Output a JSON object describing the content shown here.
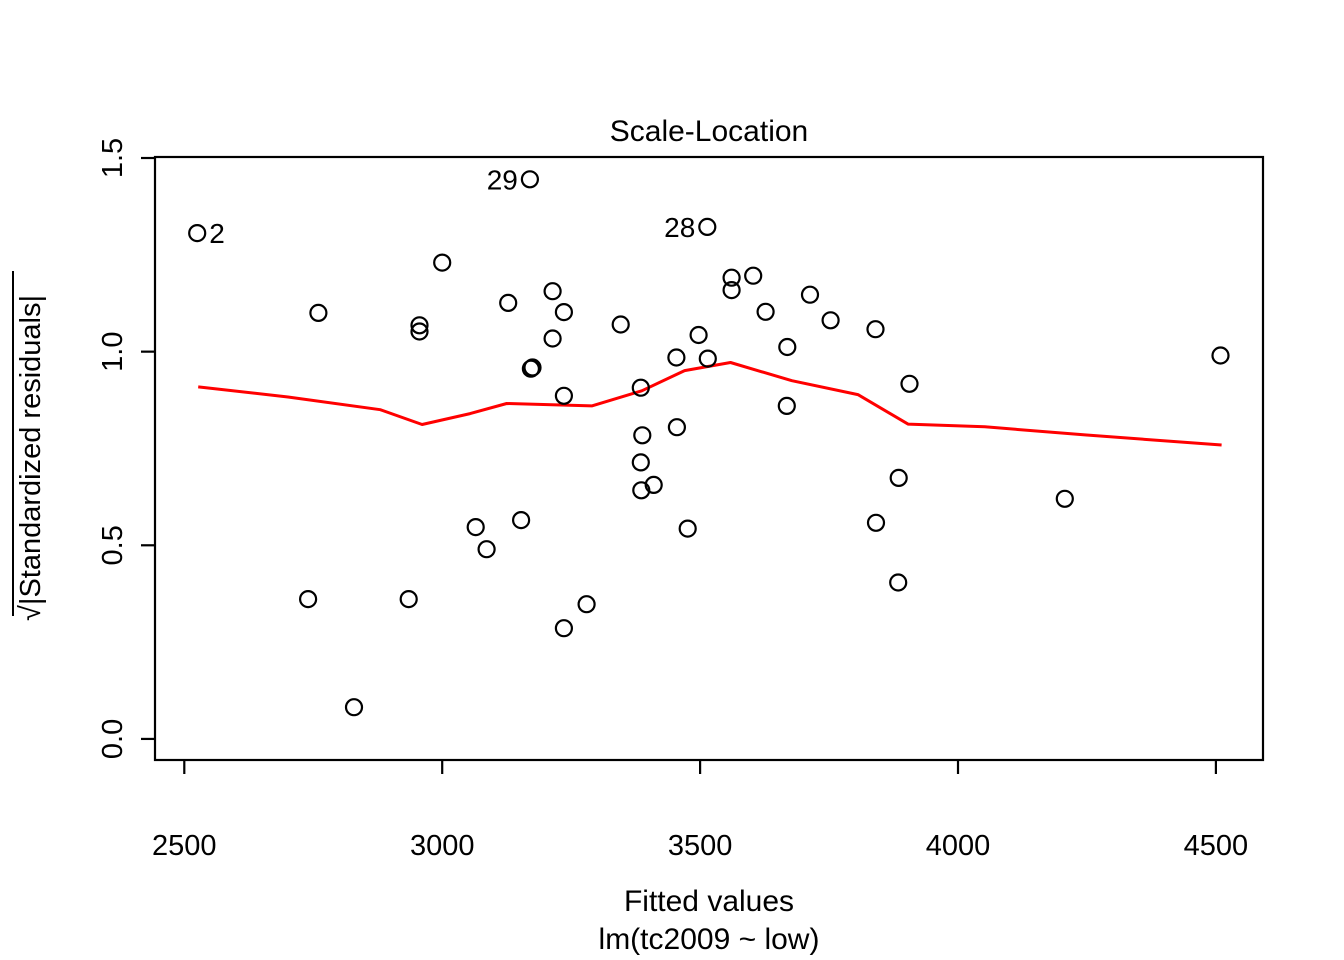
{
  "figure": {
    "title": "Scale-Location",
    "xlabel": "Fitted values",
    "sublabel": "lm(tc2009 ~ low)",
    "ylabel_radical": "√",
    "ylabel_body": "|Standardized residuals|"
  },
  "colors": {
    "background": "#ffffff",
    "foreground": "#000000",
    "smooth_line": "#ff0000"
  },
  "chart_data": {
    "type": "scatter",
    "title": "Scale-Location",
    "xlabel": "Fitted values",
    "model_label": "lm(tc2009 ~ low)",
    "ylabel": "sqrt(|Standardized residuals|)",
    "x_ticks": [
      2500,
      3000,
      3500,
      4000,
      4500
    ],
    "y_ticks": [
      "0.0",
      "0.5",
      "1.0",
      "1.5"
    ],
    "y_tick_values": [
      0.0,
      0.5,
      1.0,
      1.5
    ],
    "x_usr": [
      2443.2,
      4591.3
    ],
    "y_usr": [
      -0.0544,
      1.5026
    ],
    "grid": false,
    "legend": false,
    "points": [
      [
        2525,
        1.306
      ],
      [
        3170,
        1.445
      ],
      [
        3514,
        1.322
      ],
      [
        3000,
        1.23
      ],
      [
        2760,
        1.1
      ],
      [
        2956,
        1.068
      ],
      [
        2956,
        1.052
      ],
      [
        3128,
        1.126
      ],
      [
        3172,
        0.956
      ],
      [
        3175,
        0.959
      ],
      [
        3214,
        1.156
      ],
      [
        3236,
        1.102
      ],
      [
        3214,
        1.034
      ],
      [
        3236,
        0.886
      ],
      [
        3346,
        1.07
      ],
      [
        3385,
        0.907
      ],
      [
        3454,
        0.985
      ],
      [
        3497,
        1.043
      ],
      [
        3515,
        0.982
      ],
      [
        3561,
        1.191
      ],
      [
        3561,
        1.159
      ],
      [
        3603,
        1.196
      ],
      [
        3627,
        1.103
      ],
      [
        3669,
        1.012
      ],
      [
        3713,
        1.147
      ],
      [
        3753,
        1.081
      ],
      [
        3840,
        1.058
      ],
      [
        3668,
        0.86
      ],
      [
        3388,
        0.784
      ],
      [
        3455,
        0.805
      ],
      [
        3385,
        0.714
      ],
      [
        3906,
        0.917
      ],
      [
        4509,
        0.99
      ],
      [
        2740,
        0.361
      ],
      [
        2935,
        0.361
      ],
      [
        3065,
        0.547
      ],
      [
        3086,
        0.49
      ],
      [
        3153,
        0.565
      ],
      [
        2829,
        0.082
      ],
      [
        3386,
        0.642
      ],
      [
        3410,
        0.656
      ],
      [
        3476,
        0.543
      ],
      [
        3280,
        0.348
      ],
      [
        3236,
        0.286
      ],
      [
        3885,
        0.674
      ],
      [
        3841,
        0.558
      ],
      [
        3884,
        0.404
      ],
      [
        4207,
        0.62
      ]
    ],
    "labeled_points": [
      {
        "label": "2",
        "x": 2525,
        "y": 1.306,
        "side": "right"
      },
      {
        "label": "29",
        "x": 3170,
        "y": 1.445,
        "side": "left"
      },
      {
        "label": "28",
        "x": 3514,
        "y": 1.322,
        "side": "left"
      }
    ],
    "smooth_line": [
      [
        2527,
        0.909
      ],
      [
        2701,
        0.883
      ],
      [
        2880,
        0.85
      ],
      [
        2961,
        0.812
      ],
      [
        3054,
        0.84
      ],
      [
        3125,
        0.866
      ],
      [
        3290,
        0.86
      ],
      [
        3387,
        0.899
      ],
      [
        3470,
        0.951
      ],
      [
        3559,
        0.972
      ],
      [
        3678,
        0.925
      ],
      [
        3806,
        0.889
      ],
      [
        3903,
        0.813
      ],
      [
        4052,
        0.806
      ],
      [
        4246,
        0.785
      ],
      [
        4511,
        0.759
      ]
    ]
  }
}
